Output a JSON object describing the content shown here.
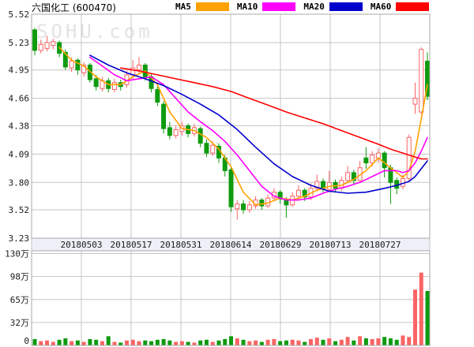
{
  "header": {
    "title": "六国化工 (600470)",
    "legend": [
      {
        "label": "MA5",
        "color": "#ffa200"
      },
      {
        "label": "MA10",
        "color": "#ff00ff"
      },
      {
        "label": "MA20",
        "color": "#0000cc"
      },
      {
        "label": "MA60",
        "color": "#ff0000"
      }
    ]
  },
  "watermark": "SOHU.com",
  "chart_data": {
    "type": "candlestick",
    "title": "六国化工 (600470)",
    "price_axis": {
      "ticks": [
        5.52,
        5.23,
        4.95,
        4.66,
        4.38,
        4.09,
        3.8,
        3.52,
        3.23
      ],
      "max": 5.52,
      "min": 3.23
    },
    "volume_axis": {
      "tick_labels": [
        "130万",
        "98万",
        "65万",
        "32万",
        "0"
      ],
      "tick_values": [
        130,
        97.5,
        65,
        32.5,
        0
      ],
      "max": 130,
      "unit": "万"
    },
    "x_axis": {
      "dates": [
        "20180503",
        "20180517",
        "20180531",
        "20180614",
        "20180629",
        "20180713",
        "20180727"
      ]
    },
    "colors": {
      "up": "#fa6464",
      "down": "#0e9b0e",
      "grid": "#c6c6c6",
      "border": "#a8a8a8",
      "strip_bg": "#eef0f8",
      "watermark": "#e3e3e3",
      "label": "#1a1a1a"
    },
    "candles_format": [
      "open",
      "high",
      "low",
      "close",
      "volume_wan",
      "dir(u=up/red,d=down/green)"
    ],
    "candles": [
      [
        5.36,
        5.38,
        5.1,
        5.15,
        9,
        "d"
      ],
      [
        5.15,
        5.26,
        5.12,
        5.21,
        6,
        "u"
      ],
      [
        5.17,
        5.3,
        5.14,
        5.23,
        7,
        "u"
      ],
      [
        5.2,
        5.27,
        5.16,
        5.24,
        5,
        "u"
      ],
      [
        5.23,
        5.25,
        5.08,
        5.12,
        8,
        "d"
      ],
      [
        5.13,
        5.16,
        4.95,
        4.98,
        10,
        "d"
      ],
      [
        4.97,
        5.08,
        4.93,
        5.04,
        6,
        "u"
      ],
      [
        5.05,
        5.07,
        4.9,
        4.95,
        7,
        "d"
      ],
      [
        4.92,
        5.03,
        4.88,
        5.0,
        5,
        "u"
      ],
      [
        5.0,
        5.02,
        4.82,
        4.85,
        9,
        "d"
      ],
      [
        4.86,
        4.9,
        4.74,
        4.78,
        8,
        "d"
      ],
      [
        4.76,
        4.88,
        4.73,
        4.84,
        6,
        "u"
      ],
      [
        4.84,
        4.87,
        4.72,
        4.76,
        13,
        "d"
      ],
      [
        4.75,
        4.86,
        4.72,
        4.82,
        5,
        "u"
      ],
      [
        4.82,
        4.85,
        4.74,
        4.78,
        4,
        "d"
      ],
      [
        4.8,
        4.94,
        4.77,
        4.9,
        7,
        "u"
      ],
      [
        4.9,
        5.05,
        4.86,
        4.97,
        8,
        "u"
      ],
      [
        4.95,
        5.08,
        4.92,
        5.0,
        6,
        "u"
      ],
      [
        5.0,
        5.02,
        4.84,
        4.88,
        7,
        "d"
      ],
      [
        4.88,
        4.91,
        4.72,
        4.76,
        6,
        "d"
      ],
      [
        4.75,
        4.78,
        4.58,
        4.62,
        8,
        "d"
      ],
      [
        4.6,
        4.63,
        4.3,
        4.35,
        9,
        "d"
      ],
      [
        4.36,
        4.42,
        4.24,
        4.28,
        7,
        "d"
      ],
      [
        4.28,
        4.38,
        4.25,
        4.34,
        5,
        "u"
      ],
      [
        4.32,
        4.42,
        4.28,
        4.38,
        6,
        "u"
      ],
      [
        4.38,
        4.4,
        4.26,
        4.3,
        5,
        "d"
      ],
      [
        4.3,
        4.4,
        4.27,
        4.36,
        4,
        "u"
      ],
      [
        4.35,
        4.37,
        4.16,
        4.2,
        7,
        "d"
      ],
      [
        4.2,
        4.24,
        4.06,
        4.1,
        8,
        "d"
      ],
      [
        4.1,
        4.22,
        4.07,
        4.18,
        5,
        "u"
      ],
      [
        4.17,
        4.2,
        4.0,
        4.05,
        7,
        "d"
      ],
      [
        4.05,
        4.08,
        3.86,
        3.92,
        9,
        "d"
      ],
      [
        3.93,
        3.95,
        3.5,
        3.55,
        13,
        "d"
      ],
      [
        3.53,
        3.62,
        3.42,
        3.58,
        10,
        "u"
      ],
      [
        3.58,
        3.62,
        3.48,
        3.52,
        8,
        "d"
      ],
      [
        3.52,
        3.61,
        3.49,
        3.57,
        6,
        "u"
      ],
      [
        3.56,
        3.66,
        3.53,
        3.62,
        7,
        "u"
      ],
      [
        3.62,
        3.64,
        3.52,
        3.56,
        5,
        "d"
      ],
      [
        3.56,
        3.68,
        3.54,
        3.64,
        8,
        "u"
      ],
      [
        3.64,
        3.74,
        3.61,
        3.7,
        9,
        "u"
      ],
      [
        3.7,
        3.72,
        3.58,
        3.63,
        6,
        "d"
      ],
      [
        3.62,
        3.65,
        3.44,
        3.57,
        7,
        "d"
      ],
      [
        3.57,
        3.7,
        3.55,
        3.66,
        8,
        "u"
      ],
      [
        3.66,
        3.77,
        3.63,
        3.72,
        7,
        "u"
      ],
      [
        3.72,
        3.74,
        3.61,
        3.65,
        5,
        "d"
      ],
      [
        3.65,
        3.79,
        3.62,
        3.74,
        9,
        "u"
      ],
      [
        3.74,
        3.88,
        3.71,
        3.81,
        11,
        "u"
      ],
      [
        3.81,
        3.84,
        3.69,
        3.73,
        8,
        "d"
      ],
      [
        3.73,
        3.92,
        3.7,
        3.8,
        10,
        "u"
      ],
      [
        3.8,
        3.83,
        3.7,
        3.74,
        6,
        "d"
      ],
      [
        3.74,
        3.86,
        3.71,
        3.82,
        8,
        "u"
      ],
      [
        3.82,
        3.97,
        3.79,
        3.9,
        12,
        "u"
      ],
      [
        3.9,
        3.93,
        3.78,
        3.82,
        7,
        "d"
      ],
      [
        3.82,
        4.02,
        3.8,
        3.95,
        13,
        "u"
      ],
      [
        4.05,
        4.16,
        3.94,
        4.0,
        10,
        "d"
      ],
      [
        4.0,
        4.12,
        3.96,
        4.08,
        9,
        "u"
      ],
      [
        4.05,
        4.15,
        4.0,
        4.1,
        10,
        "u"
      ],
      [
        4.1,
        4.12,
        3.85,
        3.95,
        12,
        "d"
      ],
      [
        3.95,
        3.98,
        3.58,
        3.8,
        10,
        "d"
      ],
      [
        3.82,
        3.85,
        3.68,
        3.74,
        8,
        "d"
      ],
      [
        3.76,
        3.88,
        3.73,
        3.84,
        14,
        "u"
      ],
      [
        3.84,
        4.29,
        3.81,
        4.26,
        12,
        "u"
      ],
      [
        4.6,
        4.82,
        4.5,
        4.66,
        79,
        "u"
      ],
      [
        4.52,
        5.18,
        4.5,
        5.16,
        103,
        "u"
      ],
      [
        5.04,
        5.13,
        4.64,
        4.68,
        77,
        "d"
      ]
    ],
    "ma_lines": [
      {
        "name": "MA5",
        "color": "#ffa200",
        "points": [
          [
            4,
            5.18
          ],
          [
            6,
            5.05
          ],
          [
            8,
            4.99
          ],
          [
            10,
            4.88
          ],
          [
            12,
            4.8
          ],
          [
            14,
            4.8
          ],
          [
            16,
            4.88
          ],
          [
            18,
            4.94
          ],
          [
            20,
            4.8
          ],
          [
            22,
            4.52
          ],
          [
            24,
            4.35
          ],
          [
            26,
            4.33
          ],
          [
            28,
            4.26
          ],
          [
            30,
            4.14
          ],
          [
            32,
            3.96
          ],
          [
            34,
            3.7
          ],
          [
            36,
            3.57
          ],
          [
            38,
            3.59
          ],
          [
            40,
            3.64
          ],
          [
            42,
            3.62
          ],
          [
            44,
            3.66
          ],
          [
            46,
            3.72
          ],
          [
            48,
            3.76
          ],
          [
            50,
            3.77
          ],
          [
            52,
            3.83
          ],
          [
            54,
            3.92
          ],
          [
            56,
            4.05
          ],
          [
            58,
            3.95
          ],
          [
            60,
            3.85
          ],
          [
            61,
            3.92
          ],
          [
            62,
            4.12
          ],
          [
            63,
            4.45
          ],
          [
            64,
            4.8
          ]
        ]
      },
      {
        "name": "MA10",
        "color": "#ff00ff",
        "points": [
          [
            9,
            5.08
          ],
          [
            11,
            4.99
          ],
          [
            13,
            4.9
          ],
          [
            15,
            4.84
          ],
          [
            17,
            4.86
          ],
          [
            19,
            4.88
          ],
          [
            21,
            4.8
          ],
          [
            23,
            4.66
          ],
          [
            25,
            4.52
          ],
          [
            27,
            4.42
          ],
          [
            29,
            4.33
          ],
          [
            31,
            4.22
          ],
          [
            33,
            4.08
          ],
          [
            35,
            3.92
          ],
          [
            37,
            3.76
          ],
          [
            39,
            3.66
          ],
          [
            41,
            3.62
          ],
          [
            43,
            3.62
          ],
          [
            45,
            3.64
          ],
          [
            47,
            3.69
          ],
          [
            49,
            3.73
          ],
          [
            51,
            3.76
          ],
          [
            53,
            3.8
          ],
          [
            55,
            3.86
          ],
          [
            57,
            3.92
          ],
          [
            59,
            3.92
          ],
          [
            60,
            3.9
          ],
          [
            61,
            3.92
          ],
          [
            62,
            4.0
          ],
          [
            63,
            4.12
          ],
          [
            64,
            4.26
          ]
        ]
      },
      {
        "name": "MA20",
        "color": "#0000cc",
        "points": [
          [
            9,
            5.1
          ],
          [
            12,
            5.0
          ],
          [
            15,
            4.92
          ],
          [
            18,
            4.86
          ],
          [
            21,
            4.79
          ],
          [
            24,
            4.7
          ],
          [
            27,
            4.6
          ],
          [
            30,
            4.49
          ],
          [
            33,
            4.34
          ],
          [
            36,
            4.16
          ],
          [
            39,
            3.99
          ],
          [
            42,
            3.86
          ],
          [
            45,
            3.77
          ],
          [
            48,
            3.71
          ],
          [
            51,
            3.69
          ],
          [
            54,
            3.7
          ],
          [
            57,
            3.74
          ],
          [
            59,
            3.77
          ],
          [
            61,
            3.81
          ],
          [
            62,
            3.86
          ],
          [
            63,
            3.94
          ],
          [
            64,
            4.02
          ]
        ]
      },
      {
        "name": "MA60",
        "color": "#ff0000",
        "points": [
          [
            14,
            4.97
          ],
          [
            17,
            4.94
          ],
          [
            20,
            4.9
          ],
          [
            23,
            4.86
          ],
          [
            26,
            4.82
          ],
          [
            29,
            4.78
          ],
          [
            32,
            4.73
          ],
          [
            35,
            4.66
          ],
          [
            38,
            4.59
          ],
          [
            41,
            4.52
          ],
          [
            44,
            4.46
          ],
          [
            47,
            4.4
          ],
          [
            50,
            4.33
          ],
          [
            53,
            4.26
          ],
          [
            56,
            4.19
          ],
          [
            58,
            4.14
          ],
          [
            60,
            4.1
          ],
          [
            62,
            4.06
          ],
          [
            63,
            4.04
          ],
          [
            64,
            4.04
          ]
        ]
      }
    ]
  }
}
